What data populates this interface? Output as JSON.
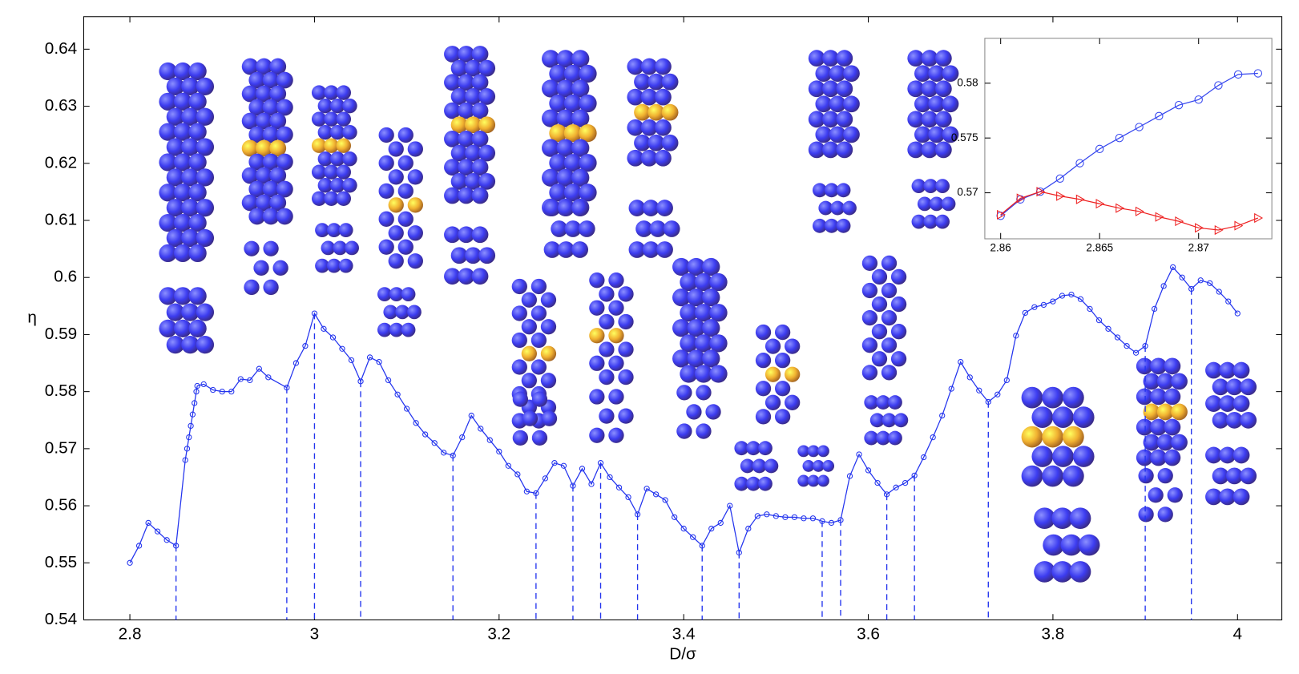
{
  "chart_data": [
    {
      "type": "line",
      "xlabel": "D/σ",
      "ylabel": "η",
      "x": [
        2.8,
        2.81,
        2.82,
        2.83,
        2.84,
        2.85,
        2.86,
        2.862,
        2.864,
        2.866,
        2.868,
        2.87,
        2.872,
        2.873,
        2.88,
        2.89,
        2.9,
        2.91,
        2.92,
        2.93,
        2.94,
        2.95,
        2.97,
        2.98,
        2.99,
        3.0,
        3.01,
        3.02,
        3.03,
        3.04,
        3.05,
        3.06,
        3.07,
        3.08,
        3.09,
        3.1,
        3.11,
        3.12,
        3.13,
        3.14,
        3.15,
        3.16,
        3.17,
        3.18,
        3.19,
        3.2,
        3.21,
        3.22,
        3.23,
        3.24,
        3.25,
        3.26,
        3.27,
        3.28,
        3.29,
        3.3,
        3.31,
        3.32,
        3.33,
        3.34,
        3.35,
        3.36,
        3.37,
        3.38,
        3.39,
        3.4,
        3.41,
        3.42,
        3.43,
        3.44,
        3.45,
        3.46,
        3.47,
        3.48,
        3.49,
        3.5,
        3.51,
        3.52,
        3.53,
        3.54,
        3.55,
        3.56,
        3.57,
        3.58,
        3.59,
        3.6,
        3.61,
        3.62,
        3.63,
        3.64,
        3.65,
        3.66,
        3.67,
        3.68,
        3.69,
        3.7,
        3.71,
        3.72,
        3.73,
        3.74,
        3.75,
        3.76,
        3.77,
        3.78,
        3.79,
        3.8,
        3.81,
        3.82,
        3.83,
        3.84,
        3.85,
        3.86,
        3.87,
        3.88,
        3.89,
        3.9,
        3.91,
        3.92,
        3.93,
        3.94,
        3.95,
        3.96,
        3.97,
        3.98,
        3.99,
        4.0
      ],
      "series": [
        {
          "color": "#2233ee",
          "marker": "circle",
          "values": [
            0.55,
            0.553,
            0.557,
            0.5555,
            0.554,
            0.553,
            0.568,
            0.57,
            0.572,
            0.574,
            0.576,
            0.578,
            0.58,
            0.581,
            0.5813,
            0.5803,
            0.58,
            0.58,
            0.5822,
            0.582,
            0.584,
            0.5825,
            0.5807,
            0.585,
            0.588,
            0.5937,
            0.591,
            0.5895,
            0.5875,
            0.5855,
            0.5818,
            0.586,
            0.5852,
            0.582,
            0.5795,
            0.577,
            0.5745,
            0.5725,
            0.571,
            0.5693,
            0.5688,
            0.572,
            0.5758,
            0.5735,
            0.5715,
            0.5695,
            0.567,
            0.5655,
            0.5625,
            0.5622,
            0.5648,
            0.5675,
            0.567,
            0.5635,
            0.5665,
            0.5638,
            0.5675,
            0.565,
            0.5632,
            0.5615,
            0.5585,
            0.563,
            0.562,
            0.561,
            0.558,
            0.556,
            0.5545,
            0.553,
            0.556,
            0.557,
            0.56,
            0.5518,
            0.556,
            0.5582,
            0.5585,
            0.5582,
            0.558,
            0.558,
            0.5578,
            0.5578,
            0.5573,
            0.557,
            0.5575,
            0.5652,
            0.569,
            0.5662,
            0.564,
            0.562,
            0.5632,
            0.564,
            0.5653,
            0.5685,
            0.572,
            0.5758,
            0.5805,
            0.5852,
            0.5825,
            0.5802,
            0.5782,
            0.5795,
            0.582,
            0.5898,
            0.5938,
            0.5948,
            0.5952,
            0.5958,
            0.5968,
            0.597,
            0.5962,
            0.5945,
            0.5925,
            0.591,
            0.5895,
            0.588,
            0.5868,
            0.588,
            0.5945,
            0.5985,
            0.6018,
            0.6,
            0.598,
            0.5995,
            0.599,
            0.5975,
            0.5958,
            0.5937
          ]
        }
      ],
      "transitions": [
        2.85,
        2.97,
        3.0,
        3.05,
        3.15,
        3.24,
        3.28,
        3.31,
        3.35,
        3.42,
        3.46,
        3.55,
        3.57,
        3.62,
        3.65,
        3.73,
        3.9,
        3.95
      ],
      "xlim": [
        2.75,
        4.048
      ],
      "ylim": [
        0.54,
        0.6457
      ],
      "xticks": [
        2.8,
        3,
        3.2,
        3.4,
        3.6,
        3.8,
        4
      ],
      "yticks": [
        0.54,
        0.55,
        0.56,
        0.57,
        0.58,
        0.59,
        0.6,
        0.61,
        0.62,
        0.63,
        0.64
      ]
    },
    {
      "type": "line",
      "x": [
        2.86,
        2.861,
        2.862,
        2.863,
        2.864,
        2.865,
        2.866,
        2.867,
        2.868,
        2.869,
        2.87,
        2.871,
        2.872,
        2.873
      ],
      "series": [
        {
          "color": "#3344ee",
          "marker": "circle",
          "values": [
            0.5679,
            0.5694,
            0.5701,
            0.5713,
            0.5727,
            0.574,
            0.575,
            0.576,
            0.577,
            0.578,
            0.5785,
            0.5798,
            0.5808,
            0.5809
          ]
        },
        {
          "color": "#ee2222",
          "marker": "triangle",
          "values": [
            0.568,
            0.5695,
            0.5701,
            0.5697,
            0.5694,
            0.569,
            0.5686,
            0.5683,
            0.5678,
            0.5674,
            0.5668,
            0.5666,
            0.567,
            0.5677
          ]
        }
      ],
      "xlim": [
        2.8592,
        2.8737
      ],
      "ylim": [
        0.5658,
        0.5841
      ],
      "xticks": [
        2.86,
        2.865,
        2.87
      ],
      "yticks": [
        0.57,
        0.575,
        0.58
      ]
    }
  ]
}
